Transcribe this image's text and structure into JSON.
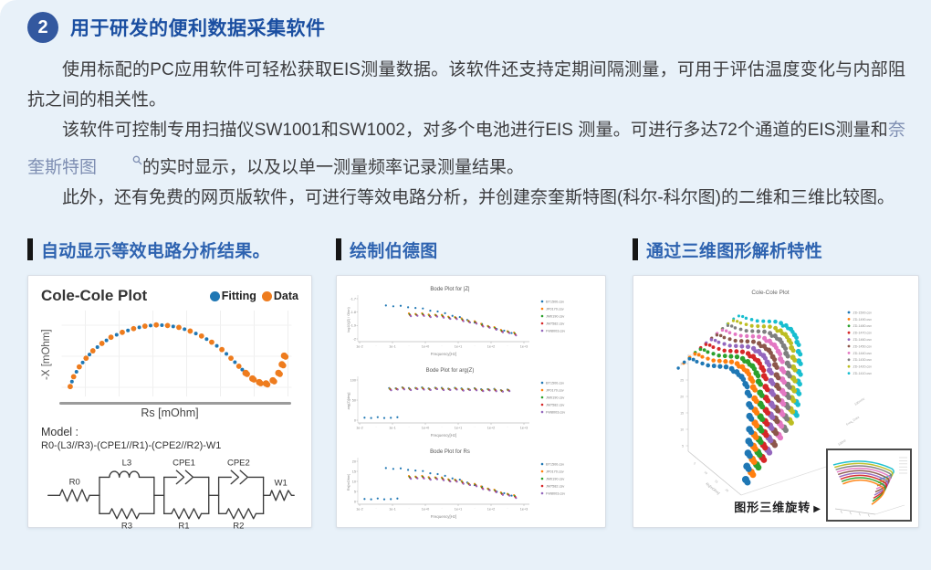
{
  "page": {
    "background": "#e8f1f9"
  },
  "header": {
    "badge": "2",
    "title": "用于研发的便利数据采集软件"
  },
  "paragraphs": {
    "p1": "使用标配的PC应用软件可轻松获取EIS测量数据。该软件还支持定期间隔测量，可用于评估温度变化与内部阻抗之间的相关性。",
    "p2_pre": "该软件可控制专用扫描仪SW1001和SW1002，对多个电池进行EIS 测量。可进行多达72个通道的EIS测量和",
    "p2_link": "奈奎斯特图",
    "p2_post": "的实时显示，以及以单一测量频率记录测量结果。",
    "p3": "此外，还有免费的网页版软件，可进行等效电路分析，并创建奈奎斯特图(科尔-科尔图)的二维和三维比较图。"
  },
  "panels": {
    "left": {
      "heading": "自动显示等效电路分析结果。",
      "plot_title": "Cole-Cole Plot",
      "legend": [
        {
          "label": "Fitting",
          "color": "#1f77b4"
        },
        {
          "label": "Data",
          "color": "#ee7c1e"
        }
      ],
      "xlabel": "Rs [mOhm]",
      "ylabel": "-X [mOhm]",
      "model_label": "Model :",
      "model_formula": "R0-(L3//R3)-(CPE1//R1)-(CPE2//R2)-W1",
      "circuit": {
        "r0": "R0",
        "l3": "L3",
        "r3": "R3",
        "cpe1": "CPE1",
        "r1": "R1",
        "cpe2": "CPE2",
        "r2": "R2",
        "w1": "W1"
      }
    },
    "middle": {
      "heading": "绘制伯德图"
    },
    "right": {
      "heading": "通过三维图形解析特性",
      "rotate_label": "图形三维旋转",
      "rotate_arrow": "▶"
    }
  },
  "chart_data": [
    {
      "id": "cole2d",
      "type": "scatter",
      "title": "Cole-Cole Plot",
      "xlabel": "Rs [mOhm]",
      "ylabel": "-X [mOhm]",
      "legend_position": "top-right",
      "series": [
        {
          "name": "Fitting",
          "color": "#1f77b4"
        },
        {
          "name": "Data",
          "color": "#ee7c1e"
        }
      ],
      "points": [
        [
          0.03,
          0.08
        ],
        [
          0.045,
          0.16
        ],
        [
          0.07,
          0.24
        ],
        [
          0.1,
          0.31
        ],
        [
          0.13,
          0.37
        ],
        [
          0.17,
          0.43
        ],
        [
          0.21,
          0.48
        ],
        [
          0.26,
          0.52
        ],
        [
          0.31,
          0.55
        ],
        [
          0.36,
          0.57
        ],
        [
          0.41,
          0.58
        ],
        [
          0.46,
          0.575
        ],
        [
          0.51,
          0.56
        ],
        [
          0.56,
          0.53
        ],
        [
          0.61,
          0.49
        ],
        [
          0.655,
          0.44
        ],
        [
          0.7,
          0.38
        ],
        [
          0.74,
          0.31
        ],
        [
          0.775,
          0.245
        ],
        [
          0.805,
          0.19
        ],
        [
          0.835,
          0.145
        ],
        [
          0.865,
          0.115
        ],
        [
          0.895,
          0.105
        ],
        [
          0.925,
          0.13
        ],
        [
          0.95,
          0.19
        ],
        [
          0.965,
          0.26
        ],
        [
          0.975,
          0.33
        ]
      ]
    },
    {
      "id": "bode",
      "type": "scatter",
      "xlabel": "Frequency[Hz]",
      "xticks": [
        "1e-2",
        "1e-1",
        "1e+0",
        "1e+1",
        "1e+2",
        "1e+3"
      ],
      "legend": [
        {
          "label": "BT1500.csv",
          "color": "#1f77b4"
        },
        {
          "label": "JP0170.csv",
          "color": "#ff7f0e"
        },
        {
          "label": "JM0190.csv",
          "color": "#2ca02c"
        },
        {
          "label": "JM7582.csv",
          "color": "#d62728"
        },
        {
          "label": "FW8003.csv",
          "color": "#9467bd"
        }
      ],
      "subplots": [
        {
          "title": "Bode Plot for |Z|",
          "ylabel": "log10(|Z| / Ohm)",
          "yticks": [
            "-1.7",
            "-1.8",
            "-1.9",
            "-2"
          ],
          "kind": "decay",
          "low_row": false
        },
        {
          "title": "Bode Plot for arg(Z)",
          "ylabel": "arg(Z)[deg]",
          "yticks": [
            "100",
            "50",
            "0"
          ],
          "kind": "flat",
          "low_row": true
        },
        {
          "title": "Bode Plot for Rs",
          "ylabel": "Rs[mOhm]",
          "yticks": [
            "20",
            "15",
            "10",
            "5",
            "0"
          ],
          "kind": "decay",
          "low_row": true
        }
      ],
      "base_blue": [
        [
          0.16,
          0.2
        ],
        [
          0.205,
          0.21
        ],
        [
          0.25,
          0.22
        ],
        [
          0.295,
          0.235
        ],
        [
          0.34,
          0.255
        ],
        [
          0.385,
          0.28
        ],
        [
          0.43,
          0.31
        ],
        [
          0.475,
          0.345
        ],
        [
          0.52,
          0.385
        ],
        [
          0.565,
          0.43
        ],
        [
          0.61,
          0.48
        ],
        [
          0.655,
          0.535
        ],
        [
          0.7,
          0.59
        ],
        [
          0.745,
          0.645
        ],
        [
          0.79,
          0.7
        ],
        [
          0.835,
          0.75
        ],
        [
          0.88,
          0.795
        ],
        [
          0.925,
          0.83
        ]
      ],
      "base_cluster": [
        [
          0.3,
          0.385
        ],
        [
          0.34,
          0.39
        ],
        [
          0.38,
          0.395
        ],
        [
          0.42,
          0.405
        ],
        [
          0.46,
          0.415
        ],
        [
          0.5,
          0.43
        ],
        [
          0.54,
          0.45
        ],
        [
          0.58,
          0.475
        ],
        [
          0.62,
          0.505
        ],
        [
          0.66,
          0.54
        ],
        [
          0.7,
          0.58
        ],
        [
          0.74,
          0.625
        ],
        [
          0.78,
          0.67
        ],
        [
          0.82,
          0.715
        ],
        [
          0.86,
          0.76
        ],
        [
          0.9,
          0.8
        ],
        [
          0.94,
          0.84
        ]
      ],
      "flat_main": [
        [
          0.18,
          0.23
        ],
        [
          0.22,
          0.228
        ],
        [
          0.26,
          0.226
        ],
        [
          0.3,
          0.225
        ],
        [
          0.34,
          0.225
        ],
        [
          0.38,
          0.226
        ],
        [
          0.42,
          0.227
        ],
        [
          0.46,
          0.228
        ],
        [
          0.5,
          0.23
        ],
        [
          0.54,
          0.232
        ],
        [
          0.58,
          0.235
        ],
        [
          0.62,
          0.238
        ],
        [
          0.66,
          0.242
        ],
        [
          0.7,
          0.246
        ],
        [
          0.74,
          0.25
        ],
        [
          0.78,
          0.255
        ],
        [
          0.82,
          0.26
        ],
        [
          0.86,
          0.266
        ],
        [
          0.9,
          0.272
        ]
      ],
      "flat_low": [
        [
          0.03,
          0.92
        ],
        [
          0.07,
          0.92
        ],
        [
          0.11,
          0.92
        ],
        [
          0.15,
          0.92
        ],
        [
          0.19,
          0.92
        ],
        [
          0.23,
          0.92
        ]
      ]
    },
    {
      "id": "cole3d",
      "type": "scatter3d",
      "title": "Cole-Cole Plot",
      "axis_label": "Rs[mOhm]",
      "zticks": [
        "30",
        "25",
        "20",
        "15",
        "10",
        "5"
      ],
      "floor_ticks": [
        "5",
        "10",
        "15",
        "20"
      ],
      "axis_annotations": [
        "100mHz",
        "Freq_Data",
        "100Hz"
      ],
      "series": [
        {
          "label": "ZD-1500.csv",
          "color": "#1f77b4"
        },
        {
          "label": "ZD-1490.csv",
          "color": "#ff7f0e"
        },
        {
          "label": "ZD-1480.csv",
          "color": "#2ca02c"
        },
        {
          "label": "ZD-1470.csv",
          "color": "#d62728"
        },
        {
          "label": "ZD-1460.csv",
          "color": "#9467bd"
        },
        {
          "label": "ZD-1450.csv",
          "color": "#8c564b"
        },
        {
          "label": "ZD-1440.csv",
          "color": "#e377c2"
        },
        {
          "label": "ZD-1430.csv",
          "color": "#7f7f7f"
        },
        {
          "label": "ZD-1420.csv",
          "color": "#bcbd22"
        },
        {
          "label": "ZD-1410.csv",
          "color": "#17becf"
        }
      ],
      "base_curve": [
        [
          0.0,
          0.06
        ],
        [
          0.04,
          0.02
        ],
        [
          0.08,
          0.0
        ],
        [
          0.12,
          0.01
        ],
        [
          0.16,
          0.03
        ],
        [
          0.22,
          0.05
        ],
        [
          0.28,
          0.07
        ],
        [
          0.34,
          0.08
        ],
        [
          0.4,
          0.09
        ],
        [
          0.46,
          0.1
        ],
        [
          0.52,
          0.12
        ],
        [
          0.58,
          0.15
        ],
        [
          0.64,
          0.19
        ],
        [
          0.7,
          0.25
        ],
        [
          0.75,
          0.32
        ],
        [
          0.8,
          0.41
        ],
        [
          0.84,
          0.5
        ],
        [
          0.88,
          0.6
        ],
        [
          0.91,
          0.69
        ],
        [
          0.94,
          0.78
        ],
        [
          0.97,
          0.88
        ],
        [
          1.0,
          0.98
        ]
      ]
    }
  ]
}
